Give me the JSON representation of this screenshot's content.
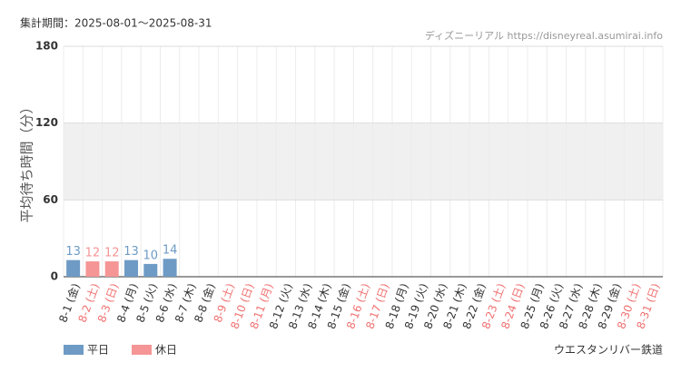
{
  "chart_data": {
    "type": "bar",
    "period": "集計期間：2025-08-01～2025-08-31",
    "source": "ディズニーリアル https://disneyreal.asumirai.info",
    "attraction": "ウエスタンリバー鉄道",
    "y_label": "平均待ち時間（分）",
    "categories": [
      "8-1 (金)",
      "8-2 (土)",
      "8-3 (日)",
      "8-4 (月)",
      "8-5 (火)",
      "8-6 (水)",
      "8-7 (木)",
      "8-8 (金)",
      "8-9 (土)",
      "8-10 (日)",
      "8-11 (月)",
      "8-12 (火)",
      "8-13 (水)",
      "8-14 (木)",
      "8-15 (金)",
      "8-16 (土)",
      "8-17 (日)",
      "8-18 (月)",
      "8-19 (火)",
      "8-20 (水)",
      "8-21 (木)",
      "8-22 (金)",
      "8-23 (土)",
      "8-24 (日)",
      "8-25 (月)",
      "8-26 (火)",
      "8-27 (水)",
      "8-28 (木)",
      "8-29 (金)",
      "8-30 (土)",
      "8-31 (日)"
    ],
    "label_colors": [
      "#333",
      "#f07070",
      "#f07070",
      "#333",
      "#333",
      "#333",
      "#333",
      "#333",
      "#f07070",
      "#f07070",
      "#f07070",
      "#333",
      "#333",
      "#333",
      "#333",
      "#f07070",
      "#f07070",
      "#333",
      "#333",
      "#333",
      "#333",
      "#333",
      "#f07070",
      "#f07070",
      "#333",
      "#333",
      "#333",
      "#333",
      "#333",
      "#f07070",
      "#f07070"
    ],
    "series": [
      {
        "name": "平日",
        "color": "#6e9bc5",
        "values": [
          13,
          null,
          null,
          13,
          10,
          14,
          null,
          null,
          null,
          null,
          null,
          null,
          null,
          null,
          null,
          null,
          null,
          null,
          null,
          null,
          null,
          null,
          null,
          null,
          null,
          null,
          null,
          null,
          null,
          null,
          null
        ]
      },
      {
        "name": "休日",
        "color": "#f59595",
        "values": [
          null,
          12,
          12,
          null,
          null,
          null,
          null,
          null,
          null,
          null,
          null,
          null,
          null,
          null,
          null,
          null,
          null,
          null,
          null,
          null,
          null,
          null,
          null,
          null,
          null,
          null,
          null,
          null,
          null,
          null,
          null
        ]
      }
    ],
    "ylim": [
      0,
      180
    ],
    "yticks": [
      0,
      60,
      120,
      180
    ],
    "shaded_band": [
      60,
      120
    ],
    "grid": true
  }
}
